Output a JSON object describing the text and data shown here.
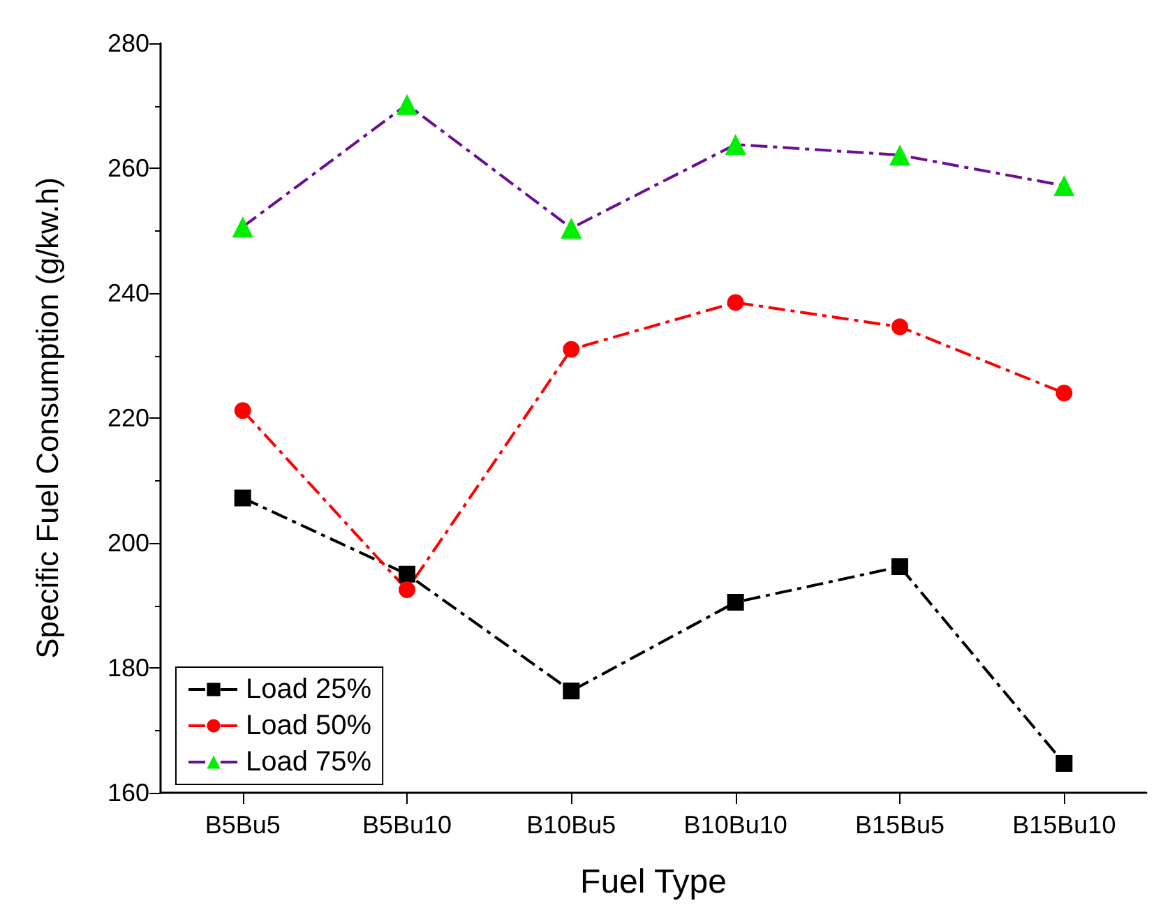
{
  "chart_data": {
    "type": "line",
    "xlabel": "Fuel Type",
    "ylabel": "Specific Fuel Consumption (g/kw.h)",
    "categories": [
      "B5Bu5",
      "B5Bu10",
      "B10Bu5",
      "B10Bu10",
      "B15Bu5",
      "B15Bu10"
    ],
    "series": [
      {
        "name": "Load 25%",
        "color": "#000000",
        "marker": "square",
        "values": [
          207.2,
          195,
          176.3,
          190.5,
          196.2,
          164.7
        ]
      },
      {
        "name": "Load 50%",
        "color": "#ff0000",
        "marker": "circle",
        "values": [
          221.2,
          192.5,
          231,
          238.5,
          234.6,
          224
        ]
      },
      {
        "name": "Load 75%",
        "color": "#6a0e95",
        "colors": [
          "#00ee00",
          "#00ee00",
          "#00ee00",
          "#00ee00",
          "#00ee00",
          "#00ee00"
        ],
        "marker": "triangle",
        "values": [
          250.6,
          270.2,
          250.4,
          263.8,
          262.1,
          257.2
        ]
      }
    ],
    "ylim": [
      160,
      280
    ],
    "yticks": [
      160,
      180,
      200,
      220,
      240,
      260,
      280
    ],
    "grid": false,
    "legend": "bottom left",
    "line_style": "dashed"
  }
}
